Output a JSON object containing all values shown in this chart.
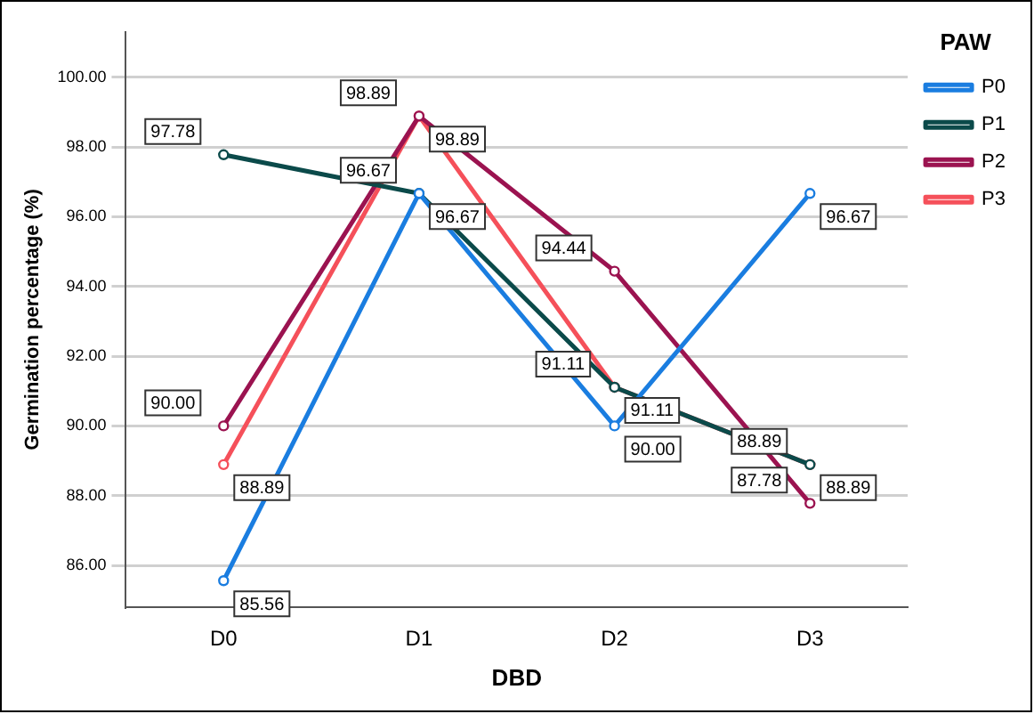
{
  "chart_data": {
    "type": "line",
    "xlabel": "DBD",
    "ylabel": "Germination percentage (%)",
    "legend_title": "PAW",
    "categories": [
      "D0",
      "D1",
      "D2",
      "D3"
    ],
    "series": [
      {
        "name": "P0",
        "color": "#1a7de0",
        "values": [
          85.56,
          96.67,
          90.0,
          96.67
        ],
        "value_labels": [
          "85.56",
          "96.67",
          "90.00",
          "96.67"
        ]
      },
      {
        "name": "P1",
        "color": "#0b4a4a",
        "values": [
          97.78,
          96.67,
          91.11,
          88.89
        ],
        "value_labels": [
          "97.78",
          "96.67",
          "91.11",
          "88.89"
        ]
      },
      {
        "name": "P2",
        "color": "#9b1350",
        "values": [
          90.0,
          98.89,
          94.44,
          87.78
        ],
        "value_labels": [
          "90.00",
          "98.89",
          "94.44",
          "87.78"
        ]
      },
      {
        "name": "P3",
        "color": "#f5505a",
        "values": [
          88.89,
          98.89,
          91.11,
          88.89
        ],
        "value_labels": [
          "88.89",
          "98.89",
          "91.11",
          "88.89"
        ]
      }
    ],
    "ylim": [
      84.8,
      101.3
    ],
    "yticks": [
      {
        "value": 86,
        "label": "86.00"
      },
      {
        "value": 88,
        "label": "88.00"
      },
      {
        "value": 90,
        "label": "90.00"
      },
      {
        "value": 92,
        "label": "92.00"
      },
      {
        "value": 94,
        "label": "94.00"
      },
      {
        "value": 96,
        "label": "96.00"
      },
      {
        "value": 98,
        "label": "98.00"
      },
      {
        "value": 100,
        "label": "100.00"
      }
    ],
    "grid": "y",
    "legend": "top right",
    "marker": "circle",
    "line_style": "solid"
  }
}
